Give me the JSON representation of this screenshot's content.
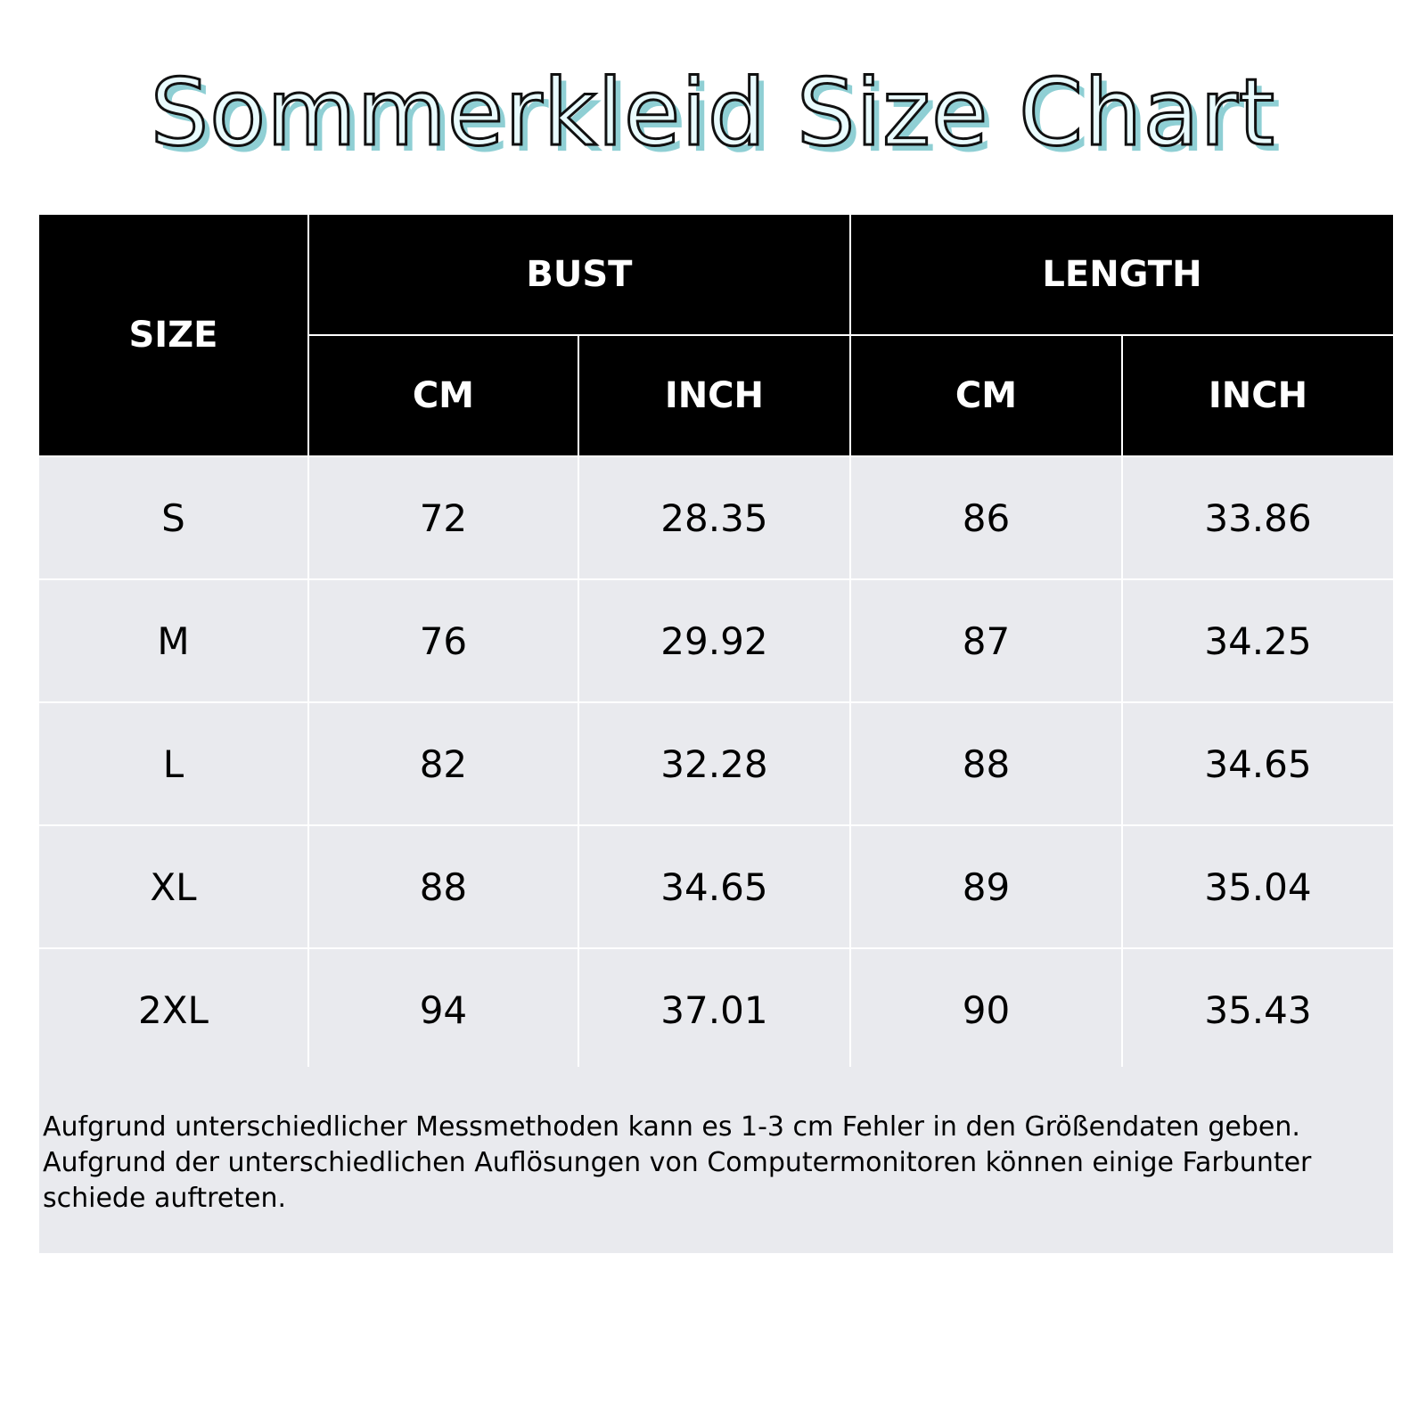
{
  "title": "Sommerkleid Size Chart",
  "colors": {
    "header_bg": "#000000",
    "header_text": "#ffffff",
    "row_bg": "#e9eaee",
    "title_fill": "#e9fbfd",
    "title_outline": "#111111",
    "title_shadow": "#8fcfd4"
  },
  "table": {
    "headers": {
      "size": "SIZE",
      "bust": "BUST",
      "length": "LENGTH",
      "bust_cm": "CM",
      "bust_inch": "INCH",
      "length_cm": "CM",
      "length_inch": "INCH"
    },
    "rows": [
      {
        "size": "S",
        "bust_cm": "72",
        "bust_inch": "28.35",
        "length_cm": "86",
        "length_inch": "33.86"
      },
      {
        "size": "M",
        "bust_cm": "76",
        "bust_inch": "29.92",
        "length_cm": "87",
        "length_inch": "34.25"
      },
      {
        "size": "L",
        "bust_cm": "82",
        "bust_inch": "32.28",
        "length_cm": "88",
        "length_inch": "34.65"
      },
      {
        "size": "XL",
        "bust_cm": "88",
        "bust_inch": "34.65",
        "length_cm": "89",
        "length_inch": "35.04"
      },
      {
        "size": "2XL",
        "bust_cm": "94",
        "bust_inch": "37.01",
        "length_cm": "90",
        "length_inch": "35.43"
      }
    ]
  },
  "note": {
    "line1": "Aufgrund unterschiedlicher Messmethoden kann es 1-3 cm Fehler in den Größendaten geben.",
    "line2": "Aufgrund der unterschiedlichen Auflösungen von Computermonitoren können einige Farbunter",
    "line3": "schiede auftreten."
  }
}
